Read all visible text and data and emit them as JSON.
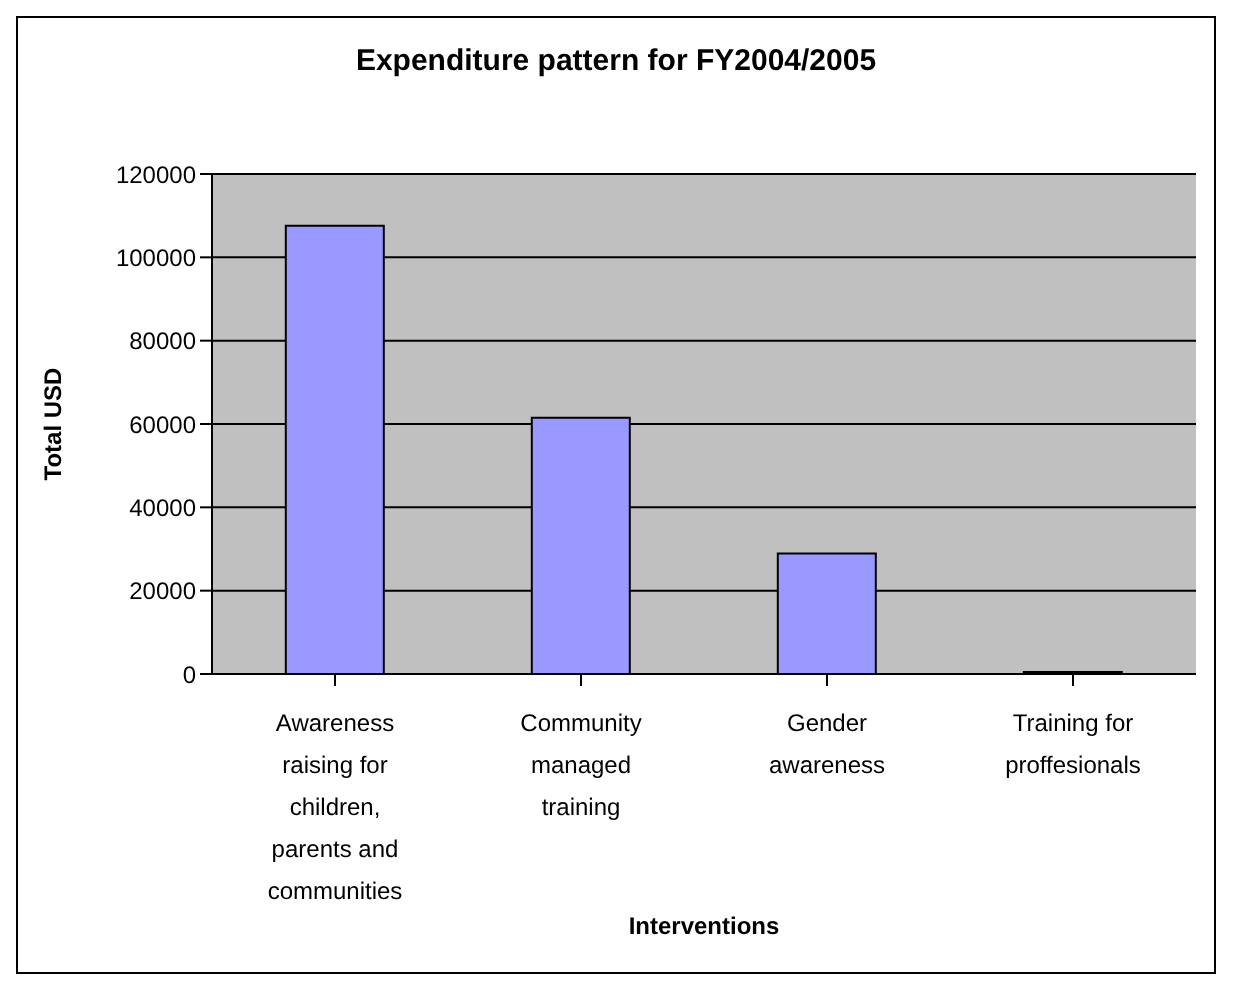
{
  "chart_data": {
    "type": "bar",
    "title": "Expenditure pattern for FY2004/2005",
    "xlabel": "Interventions",
    "ylabel": "Total USD",
    "categories": [
      "Awareness raising for children, parents and communities",
      "Community managed training",
      "Gender awareness",
      "Training for proffesionals"
    ],
    "values": [
      107600,
      61500,
      28900,
      500
    ],
    "color": "#9999ff",
    "ylim": [
      0,
      120000
    ],
    "yticks": [
      0,
      20000,
      40000,
      60000,
      80000,
      100000,
      120000
    ],
    "grid": "y"
  }
}
